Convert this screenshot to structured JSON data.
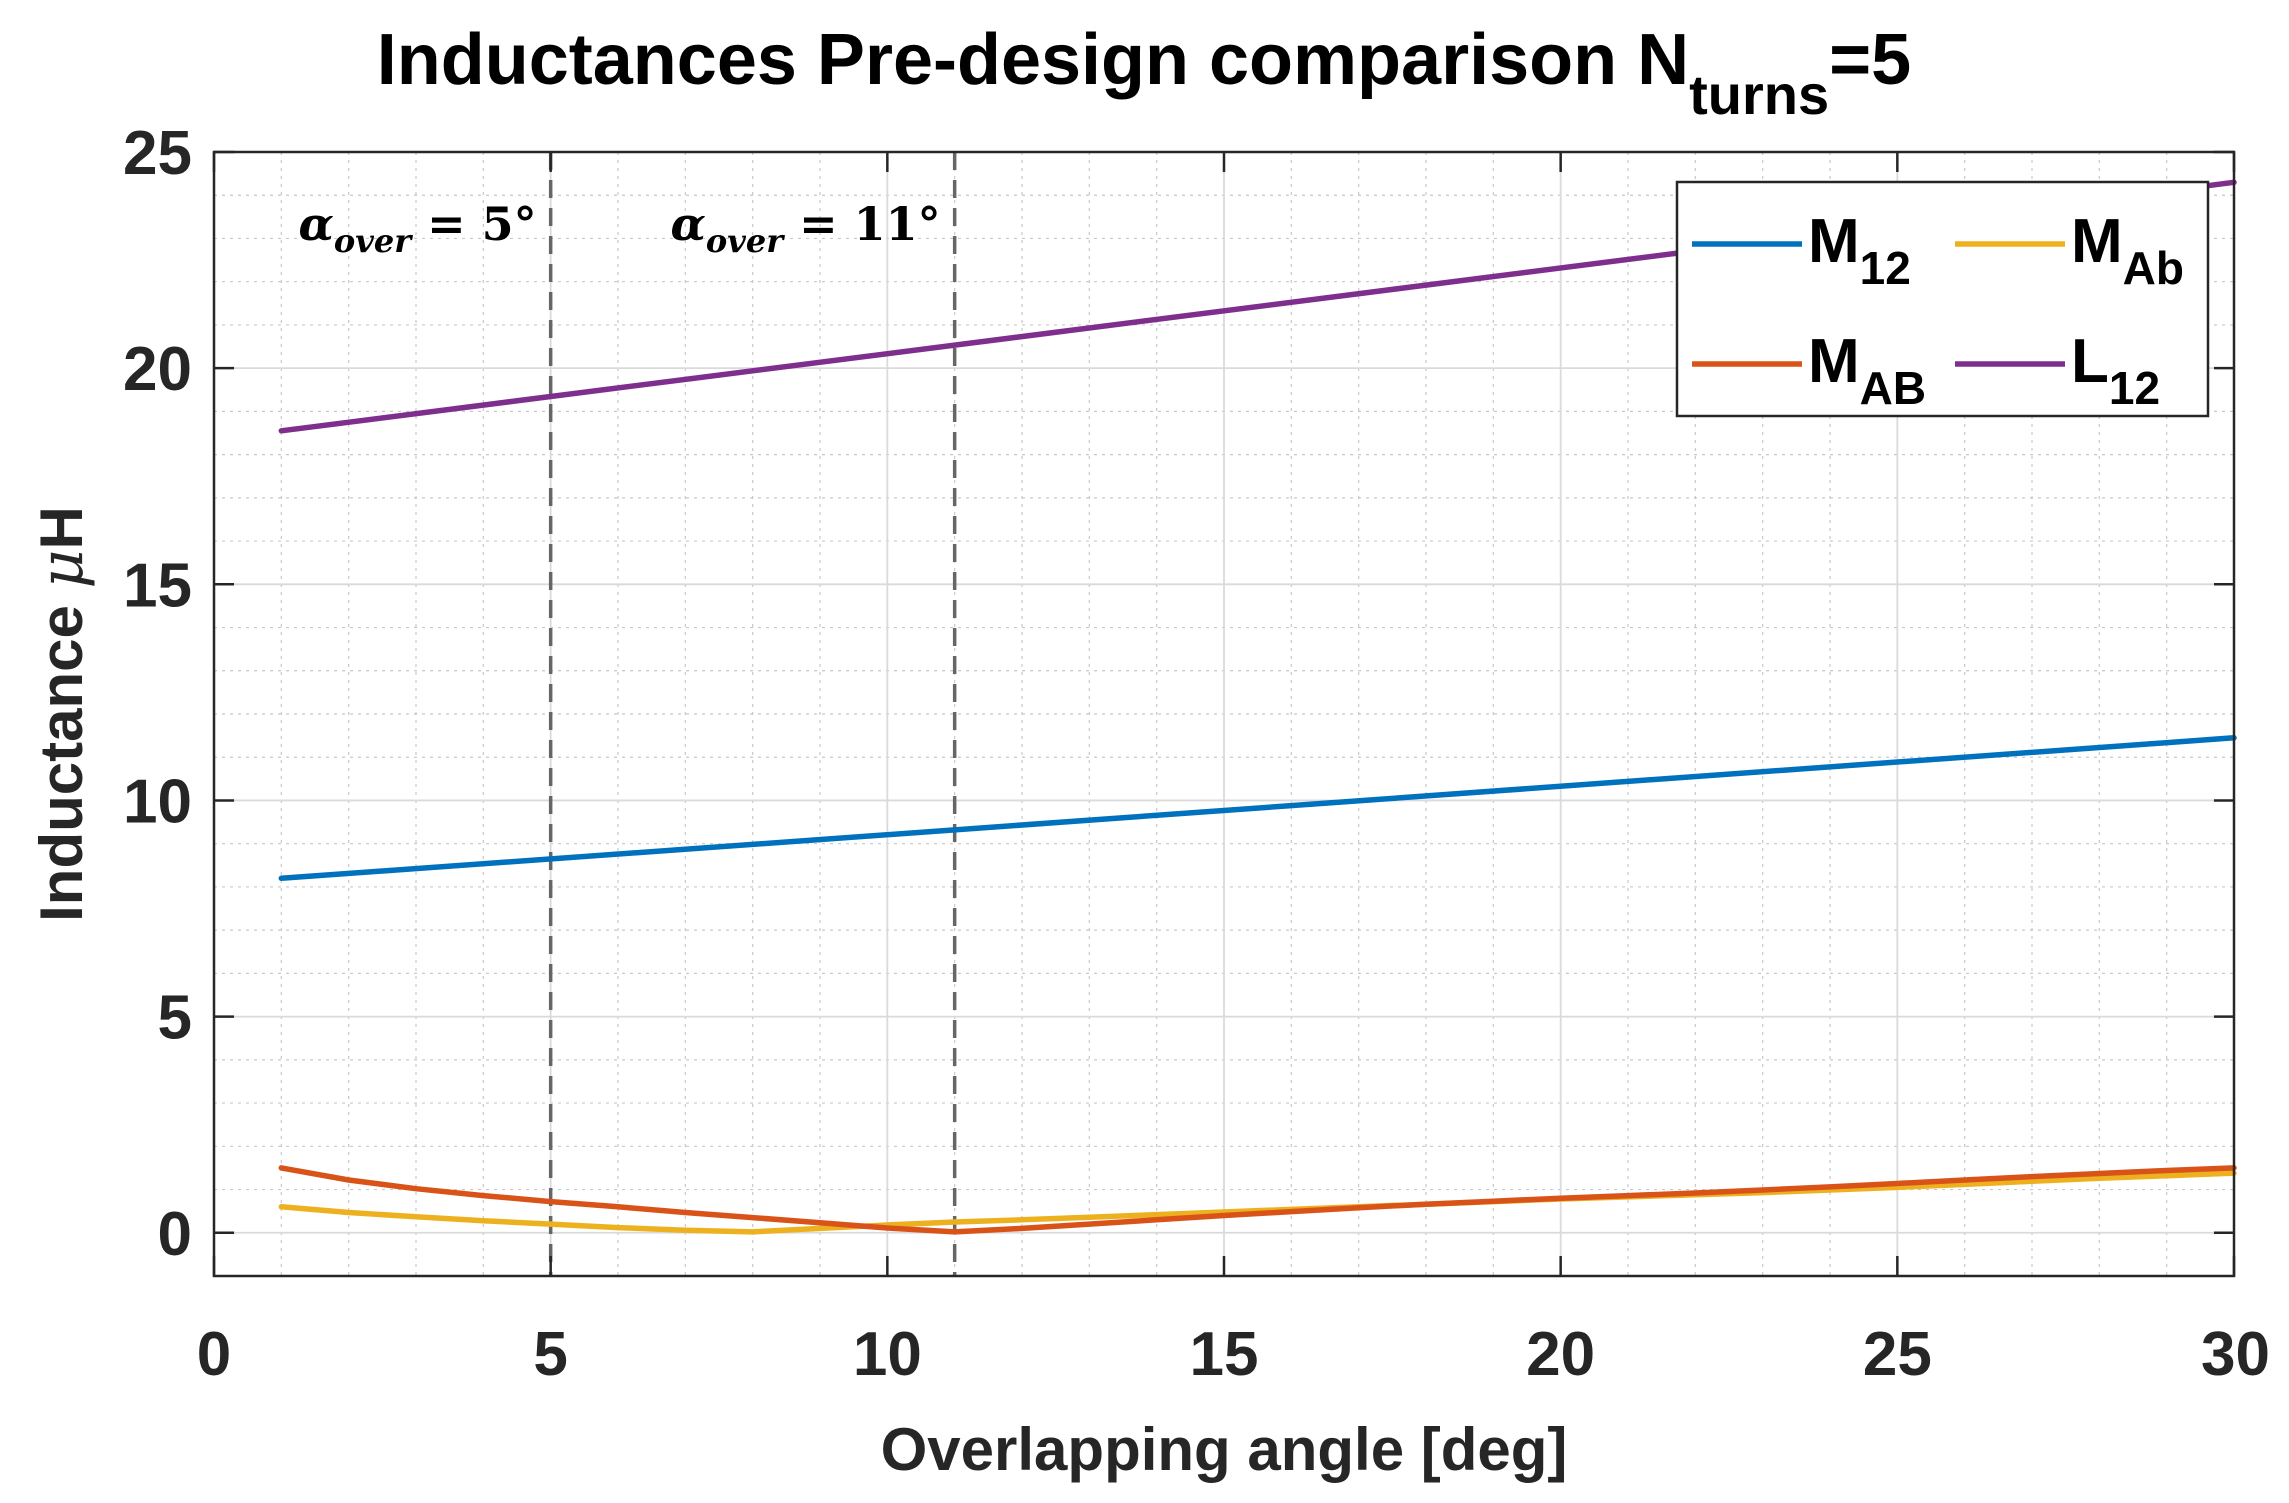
{
  "chart_data": {
    "type": "line",
    "title": {
      "main": "Inductances Pre-design comparison N",
      "subscript": "turns",
      "suffix": "=5"
    },
    "xlabel": "Overlapping angle [deg]",
    "ylabel": {
      "main": "Inductance ",
      "unit_symbol": "μ",
      "unit": "H"
    },
    "xlim": [
      0,
      30
    ],
    "ylim": [
      -1,
      25
    ],
    "xticks": [
      0,
      5,
      10,
      15,
      20,
      25,
      30
    ],
    "yticks": [
      0,
      5,
      10,
      15,
      20,
      25
    ],
    "grid": "major-and-minor",
    "legend_position": "top-right",
    "series": [
      {
        "name": "M12",
        "label_main": "M",
        "label_sub": "12",
        "color": "#0072BD",
        "x": [
          1,
          30
        ],
        "y": [
          8.2,
          11.45
        ]
      },
      {
        "name": "MAb",
        "label_main": "M",
        "label_sub": "Ab",
        "color": "#EDB120",
        "x": [
          1,
          2,
          3,
          4,
          5,
          6,
          7,
          8,
          9,
          10,
          11,
          12,
          13,
          14,
          15,
          16,
          17,
          18,
          19,
          20,
          21,
          22,
          23,
          24,
          25,
          26,
          27,
          28,
          29,
          30
        ],
        "y": [
          0.6,
          0.47,
          0.37,
          0.28,
          0.2,
          0.12,
          0.06,
          0.02,
          0.1,
          0.18,
          0.25,
          0.3,
          0.36,
          0.42,
          0.48,
          0.54,
          0.6,
          0.66,
          0.72,
          0.78,
          0.83,
          0.88,
          0.93,
          0.99,
          1.05,
          1.12,
          1.19,
          1.26,
          1.32,
          1.38
        ]
      },
      {
        "name": "MAB",
        "label_main": "M",
        "label_sub": "AB",
        "color": "#D95319",
        "x": [
          1,
          2,
          3,
          4,
          5,
          6,
          7,
          8,
          9,
          10,
          11,
          12,
          13,
          14,
          15,
          16,
          17,
          18,
          19,
          20,
          21,
          22,
          23,
          24,
          25,
          26,
          27,
          28,
          29,
          30
        ],
        "y": [
          1.5,
          1.22,
          1.02,
          0.86,
          0.72,
          0.6,
          0.47,
          0.35,
          0.23,
          0.11,
          0.02,
          0.1,
          0.2,
          0.3,
          0.4,
          0.49,
          0.58,
          0.66,
          0.73,
          0.8,
          0.86,
          0.92,
          0.99,
          1.06,
          1.14,
          1.22,
          1.3,
          1.37,
          1.44,
          1.5
        ]
      },
      {
        "name": "L12",
        "label_main": "L",
        "label_sub": "12",
        "color": "#7E2F8E",
        "x": [
          1,
          30
        ],
        "y": [
          18.55,
          24.3
        ]
      }
    ],
    "annotations": [
      {
        "x": 5,
        "main": "α",
        "sub": "over",
        "rest": " = 5°"
      },
      {
        "x": 11,
        "main": "α",
        "sub": "over",
        "rest": " = 11°"
      }
    ],
    "vlines": [
      5,
      11
    ]
  }
}
